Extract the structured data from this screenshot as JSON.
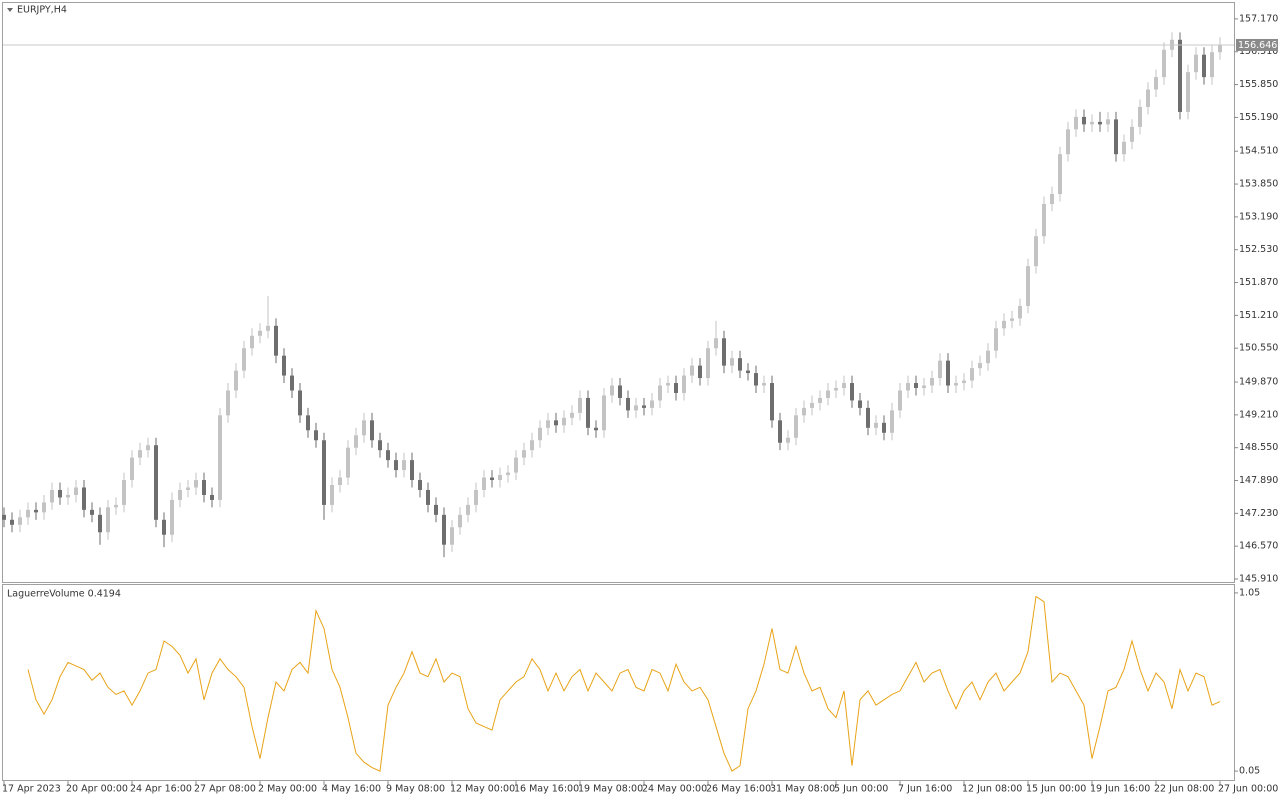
{
  "chart_data": [
    {
      "type": "candlestick",
      "title": "EURJPY,H4",
      "categories": [
        "17 Apr 2023",
        null,
        null,
        null,
        null,
        null,
        null,
        null,
        "20 Apr 00:00",
        null,
        null,
        null,
        null,
        null,
        null,
        null,
        "24 Apr 16:00",
        null,
        null,
        null,
        null,
        null,
        null,
        null,
        "27 Apr 08:00",
        null,
        null,
        null,
        null,
        null,
        null,
        null,
        "2 May 00:00",
        null,
        null,
        null,
        null,
        null,
        null,
        null,
        "4 May 16:00",
        null,
        null,
        null,
        null,
        null,
        null,
        null,
        "9 May 08:00",
        null,
        null,
        null,
        null,
        null,
        null,
        null,
        "12 May 00:00",
        null,
        null,
        null,
        null,
        null,
        null,
        null,
        "16 May 16:00",
        null,
        null,
        null,
        null,
        null,
        null,
        null,
        "19 May 08:00",
        null,
        null,
        null,
        null,
        null,
        null,
        null,
        "24 May 00:00",
        null,
        null,
        null,
        null,
        null,
        null,
        null,
        "26 May 16:00",
        null,
        null,
        null,
        null,
        null,
        null,
        null,
        "31 May 08:00",
        null,
        null,
        null,
        null,
        null,
        null,
        null,
        "5 Jun 00:00",
        null,
        null,
        null,
        null,
        null,
        null,
        null,
        "7 Jun 16:00",
        null,
        null,
        null,
        null,
        null,
        null,
        null,
        "12 Jun 08:00",
        null,
        null,
        null,
        null,
        null,
        null,
        null,
        "15 Jun 00:00",
        null,
        null,
        null,
        null,
        null,
        null,
        null,
        "19 Jun 16:00",
        null,
        null,
        null,
        null,
        null,
        null,
        null,
        "22 Jun 08:00",
        null,
        null,
        null,
        null,
        null,
        null,
        null,
        "27 Jun 00:00"
      ],
      "open": [
        147.2,
        147.1,
        147.0,
        147.15,
        147.3,
        147.25,
        147.45,
        147.7,
        147.55,
        147.6,
        147.75,
        147.3,
        147.2,
        146.85,
        147.35,
        147.4,
        147.9,
        148.35,
        148.5,
        148.6,
        147.1,
        146.8,
        147.5,
        147.7,
        147.75,
        147.9,
        147.6,
        147.5,
        149.2,
        149.7,
        150.1,
        150.55,
        150.8,
        150.9,
        151.0,
        150.4,
        150.0,
        149.7,
        149.2,
        148.9,
        148.7,
        147.4,
        147.8,
        147.95,
        148.55,
        148.8,
        149.1,
        148.7,
        148.5,
        148.3,
        148.1,
        148.3,
        147.9,
        147.7,
        147.4,
        147.2,
        146.6,
        146.95,
        147.2,
        147.4,
        147.7,
        147.95,
        147.9,
        148.0,
        148.05,
        148.35,
        148.5,
        148.7,
        148.95,
        149.1,
        149.0,
        149.15,
        149.25,
        149.55,
        148.95,
        148.9,
        149.6,
        149.8,
        149.55,
        149.3,
        149.4,
        149.35,
        149.5,
        149.8,
        149.85,
        149.65,
        150.0,
        150.2,
        149.95,
        150.55,
        150.75,
        150.2,
        150.35,
        150.1,
        150.05,
        149.8,
        149.85,
        149.1,
        148.65,
        148.75,
        149.2,
        149.35,
        149.45,
        149.55,
        149.7,
        149.75,
        149.85,
        149.5,
        149.35,
        148.95,
        149.05,
        148.85,
        149.3,
        149.7,
        149.85,
        149.75,
        149.8,
        149.95,
        150.3,
        149.8,
        149.85,
        149.9,
        150.15,
        150.25,
        150.5,
        150.95,
        151.1,
        151.15,
        151.4,
        152.2,
        152.8,
        153.45,
        153.65,
        154.45,
        154.95,
        155.2,
        155.05,
        155.1,
        155.05,
        155.15,
        154.45,
        154.7,
        155.0,
        155.4,
        155.75,
        156.0,
        156.55,
        156.75,
        155.3,
        156.1,
        156.45,
        156.0,
        156.5
      ],
      "high": [
        147.35,
        147.25,
        147.3,
        147.45,
        147.45,
        147.6,
        147.85,
        147.85,
        147.75,
        147.9,
        147.9,
        147.45,
        147.35,
        147.5,
        147.55,
        148.05,
        148.5,
        148.65,
        148.75,
        148.75,
        147.25,
        147.65,
        147.85,
        147.9,
        148.05,
        148.05,
        147.75,
        149.35,
        149.85,
        150.25,
        150.7,
        150.95,
        151.05,
        151.6,
        151.15,
        150.55,
        150.15,
        149.85,
        149.35,
        149.05,
        148.85,
        147.95,
        148.1,
        148.7,
        148.95,
        149.25,
        149.25,
        148.85,
        148.65,
        148.45,
        148.45,
        148.45,
        148.05,
        147.85,
        147.55,
        147.35,
        147.1,
        147.35,
        147.55,
        147.85,
        148.1,
        148.1,
        148.15,
        148.2,
        148.5,
        148.65,
        148.85,
        149.1,
        149.25,
        149.25,
        149.3,
        149.4,
        149.7,
        149.7,
        149.1,
        149.75,
        149.95,
        149.95,
        149.7,
        149.55,
        149.55,
        149.65,
        149.95,
        150.0,
        150.0,
        150.15,
        150.35,
        150.35,
        150.7,
        151.1,
        150.9,
        150.5,
        150.5,
        150.25,
        150.2,
        150.0,
        150.0,
        149.25,
        148.9,
        149.35,
        149.5,
        149.6,
        149.7,
        149.85,
        149.9,
        150.0,
        150.0,
        149.65,
        149.5,
        149.2,
        149.2,
        149.45,
        149.85,
        150.0,
        150.0,
        149.95,
        150.1,
        150.45,
        150.45,
        150.0,
        150.05,
        150.3,
        150.4,
        150.65,
        151.1,
        151.25,
        151.3,
        151.55,
        152.35,
        152.95,
        153.6,
        153.8,
        154.6,
        155.1,
        155.35,
        155.35,
        155.25,
        155.3,
        155.3,
        155.3,
        154.85,
        155.15,
        155.55,
        155.9,
        156.15,
        156.7,
        156.9,
        156.9,
        156.25,
        156.6,
        156.6,
        156.65,
        156.8
      ],
      "low": [
        146.95,
        146.85,
        146.85,
        147.0,
        147.1,
        147.1,
        147.3,
        147.4,
        147.4,
        147.45,
        147.15,
        147.05,
        146.6,
        146.7,
        147.2,
        147.25,
        147.75,
        148.2,
        148.35,
        146.95,
        146.55,
        146.65,
        147.35,
        147.55,
        147.6,
        147.45,
        147.35,
        147.35,
        149.05,
        149.55,
        149.95,
        150.4,
        150.65,
        150.75,
        150.25,
        149.85,
        149.55,
        149.05,
        148.75,
        148.55,
        147.1,
        147.25,
        147.65,
        147.8,
        148.4,
        148.65,
        148.55,
        148.35,
        148.15,
        147.95,
        147.95,
        147.75,
        147.55,
        147.25,
        147.05,
        146.35,
        146.45,
        146.8,
        147.05,
        147.25,
        147.55,
        147.75,
        147.75,
        147.85,
        147.9,
        148.2,
        148.35,
        148.55,
        148.8,
        148.85,
        148.85,
        149.0,
        149.1,
        148.8,
        148.75,
        148.75,
        149.45,
        149.4,
        149.15,
        149.15,
        149.2,
        149.2,
        149.35,
        149.65,
        149.5,
        149.5,
        149.85,
        149.8,
        149.8,
        150.4,
        150.05,
        150.05,
        149.95,
        149.9,
        149.65,
        149.65,
        148.95,
        148.5,
        148.5,
        148.6,
        149.05,
        149.2,
        149.3,
        149.4,
        149.55,
        149.6,
        149.35,
        149.2,
        148.8,
        148.8,
        148.7,
        148.7,
        149.15,
        149.55,
        149.6,
        149.6,
        149.65,
        149.8,
        149.65,
        149.65,
        149.7,
        149.75,
        150.0,
        150.1,
        150.35,
        150.8,
        150.95,
        151.0,
        151.25,
        152.05,
        152.65,
        153.3,
        153.5,
        154.3,
        154.8,
        154.9,
        154.9,
        154.9,
        154.9,
        154.3,
        154.3,
        154.55,
        154.85,
        155.25,
        155.6,
        155.85,
        156.4,
        155.15,
        155.15,
        155.95,
        155.85,
        155.85,
        156.35
      ],
      "close": [
        147.1,
        147.0,
        147.15,
        147.3,
        147.25,
        147.45,
        147.7,
        147.55,
        147.6,
        147.75,
        147.3,
        147.2,
        146.85,
        147.35,
        147.4,
        147.9,
        148.35,
        148.5,
        148.6,
        147.1,
        146.8,
        147.5,
        147.7,
        147.75,
        147.9,
        147.6,
        147.5,
        149.2,
        149.7,
        150.1,
        150.55,
        150.8,
        150.9,
        151.0,
        150.4,
        150.0,
        149.7,
        149.2,
        148.9,
        148.7,
        147.4,
        147.8,
        147.95,
        148.55,
        148.8,
        149.1,
        148.7,
        148.5,
        148.3,
        148.1,
        148.3,
        147.9,
        147.7,
        147.4,
        147.2,
        146.6,
        146.95,
        147.2,
        147.4,
        147.7,
        147.95,
        147.9,
        148.0,
        148.05,
        148.35,
        148.5,
        148.7,
        148.95,
        149.1,
        149.0,
        149.15,
        149.25,
        149.55,
        148.95,
        148.9,
        149.6,
        149.8,
        149.55,
        149.3,
        149.4,
        149.35,
        149.5,
        149.8,
        149.85,
        149.65,
        150.0,
        150.2,
        149.95,
        150.55,
        150.75,
        150.2,
        150.35,
        150.1,
        150.05,
        149.8,
        149.85,
        149.1,
        148.65,
        148.75,
        149.2,
        149.35,
        149.45,
        149.55,
        149.7,
        149.75,
        149.85,
        149.5,
        149.35,
        148.95,
        149.05,
        148.85,
        149.3,
        149.7,
        149.85,
        149.75,
        149.8,
        149.95,
        150.3,
        149.8,
        149.85,
        149.9,
        150.15,
        150.25,
        150.5,
        150.95,
        151.1,
        151.15,
        151.4,
        152.2,
        152.8,
        153.45,
        153.65,
        154.45,
        154.95,
        155.2,
        155.05,
        155.1,
        155.05,
        155.15,
        154.45,
        154.7,
        155.0,
        155.4,
        155.75,
        156.0,
        156.55,
        156.75,
        155.3,
        156.1,
        156.45,
        156.0,
        156.5,
        156.65
      ],
      "up_color": "#c3c3c3",
      "down_color": "#6e6e6e",
      "last_price": 156.646,
      "ylim": [
        145.85,
        157.51
      ],
      "yticks": [
        {
          "value": 145.91,
          "label": "145.910"
        },
        {
          "value": 146.57,
          "label": "146.570"
        },
        {
          "value": 147.23,
          "label": "147.230"
        },
        {
          "value": 147.89,
          "label": "147.890"
        },
        {
          "value": 148.55,
          "label": "148.550"
        },
        {
          "value": 149.21,
          "label": "149.210"
        },
        {
          "value": 149.87,
          "label": "149.870"
        },
        {
          "value": 150.55,
          "label": "150.550"
        },
        {
          "value": 151.21,
          "label": "151.210"
        },
        {
          "value": 151.87,
          "label": "151.870"
        },
        {
          "value": 152.53,
          "label": "152.530"
        },
        {
          "value": 153.19,
          "label": "153.190"
        },
        {
          "value": 153.85,
          "label": "153.850"
        },
        {
          "value": 154.51,
          "label": "154.510"
        },
        {
          "value": 155.19,
          "label": "155.190"
        },
        {
          "value": 155.85,
          "label": "155.850"
        },
        {
          "value": 156.51,
          "label": "156.510"
        },
        {
          "value": 157.17,
          "label": "157.170"
        }
      ]
    },
    {
      "type": "line",
      "title": "LaguerreVolume 0.4194",
      "color": "#e8a317",
      "values": [
        null,
        null,
        null,
        0.62,
        0.45,
        0.37,
        0.45,
        0.58,
        0.66,
        0.64,
        0.62,
        0.56,
        0.6,
        0.52,
        0.48,
        0.5,
        0.42,
        0.5,
        0.6,
        0.62,
        0.78,
        0.75,
        0.7,
        0.6,
        0.68,
        0.45,
        0.6,
        0.68,
        0.62,
        0.58,
        0.52,
        0.3,
        0.12,
        0.35,
        0.55,
        0.5,
        0.62,
        0.66,
        0.6,
        0.95,
        0.85,
        0.62,
        0.52,
        0.35,
        0.15,
        0.1,
        0.07,
        0.05,
        0.42,
        0.52,
        0.6,
        0.72,
        0.6,
        0.58,
        0.68,
        0.55,
        0.6,
        0.58,
        0.4,
        0.32,
        0.3,
        0.28,
        0.45,
        0.5,
        0.55,
        0.58,
        0.68,
        0.62,
        0.5,
        0.6,
        0.5,
        0.58,
        0.62,
        0.5,
        0.6,
        0.55,
        0.5,
        0.6,
        0.62,
        0.52,
        0.5,
        0.62,
        0.6,
        0.5,
        0.65,
        0.55,
        0.5,
        0.52,
        0.45,
        0.3,
        0.15,
        0.05,
        0.08,
        0.4,
        0.5,
        0.65,
        0.85,
        0.62,
        0.6,
        0.75,
        0.6,
        0.5,
        0.52,
        0.4,
        0.35,
        0.5,
        0.08,
        0.45,
        0.5,
        0.42,
        0.45,
        0.48,
        0.5,
        0.58,
        0.66,
        0.55,
        0.6,
        0.62,
        0.5,
        0.4,
        0.5,
        0.55,
        0.45,
        0.55,
        0.6,
        0.5,
        0.55,
        0.6,
        0.72,
        1.03,
        1.0,
        0.55,
        0.6,
        0.58,
        0.5,
        0.42,
        0.12,
        0.3,
        0.5,
        0.52,
        0.62,
        0.78,
        0.62,
        0.5,
        0.6,
        0.55,
        0.4,
        0.62,
        0.5,
        0.6,
        0.58,
        0.42,
        0.44
      ],
      "ylim": [
        0,
        1.1
      ],
      "yticks": [
        0.05,
        1.05
      ]
    }
  ]
}
